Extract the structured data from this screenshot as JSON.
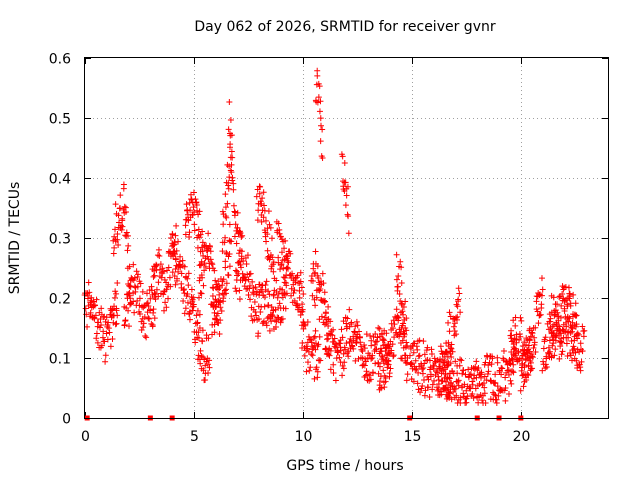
{
  "chart_data": {
    "type": "scatter",
    "title": "Day 062 of 2026, SRMTID for receiver gvnr",
    "xlabel": "GPS time / hours",
    "ylabel": "SRMTID / TECUs",
    "xlim": [
      0,
      24
    ],
    "ylim": [
      0,
      0.6
    ],
    "xticks": [
      0,
      5,
      10,
      15,
      20
    ],
    "xtick_labels": [
      "0",
      "5",
      "10",
      "15",
      "20"
    ],
    "yticks": [
      0,
      0.1,
      0.2,
      0.3,
      0.4,
      0.5,
      0.6
    ],
    "ytick_labels": [
      "0",
      "0.1",
      "0.2",
      "0.3",
      "0.4",
      "0.5",
      "0.6"
    ],
    "grid": true,
    "marker": "plus",
    "color": "#ff0000",
    "gap_markers_x": [
      0.1,
      3.0,
      4.0,
      14.9,
      18.0,
      19.0,
      20.0
    ],
    "series": [
      {
        "name": "SRMTID",
        "segments": [
          {
            "x": [
              0.0,
              1.5
            ],
            "p": [
              [
                0.0,
                0.17
              ],
              [
                0.3,
                0.2
              ],
              [
                0.6,
                0.15
              ],
              [
                1.0,
                0.14
              ],
              [
                1.3,
                0.18
              ],
              [
                1.5,
                0.2
              ]
            ]
          },
          {
            "x": [
              1.3,
              2.1
            ],
            "p": [
              [
                1.3,
                0.3
              ],
              [
                1.6,
                0.34
              ],
              [
                1.8,
                0.36
              ],
              [
                2.0,
                0.25
              ],
              [
                2.1,
                0.2
              ]
            ]
          },
          {
            "x": [
              1.8,
              3.2
            ],
            "p": [
              [
                1.8,
                0.17
              ],
              [
                2.3,
                0.22
              ],
              [
                2.7,
                0.17
              ],
              [
                3.0,
                0.18
              ],
              [
                3.2,
                0.2
              ]
            ]
          },
          {
            "x": [
              3.1,
              4.2
            ],
            "p": [
              [
                3.1,
                0.22
              ],
              [
                3.4,
                0.25
              ],
              [
                3.7,
                0.2
              ],
              [
                4.0,
                0.28
              ],
              [
                4.2,
                0.3
              ]
            ]
          },
          {
            "x": [
              4.0,
              5.0
            ],
            "p": [
              [
                4.0,
                0.28
              ],
              [
                4.4,
                0.24
              ],
              [
                4.7,
                0.2
              ],
              [
                5.0,
                0.19
              ]
            ]
          },
          {
            "x": [
              4.6,
              5.4
            ],
            "p": [
              [
                4.6,
                0.3
              ],
              [
                4.9,
                0.36
              ],
              [
                5.1,
                0.34
              ],
              [
                5.4,
                0.26
              ]
            ]
          },
          {
            "x": [
              5.0,
              5.7
            ],
            "p": [
              [
                5.0,
                0.15
              ],
              [
                5.3,
                0.11
              ],
              [
                5.5,
                0.09
              ],
              [
                5.7,
                0.12
              ]
            ]
          },
          {
            "x": [
              5.2,
              6.2
            ],
            "p": [
              [
                5.2,
                0.2
              ],
              [
                5.6,
                0.3
              ],
              [
                5.9,
                0.22
              ],
              [
                6.2,
                0.18
              ]
            ]
          },
          {
            "x": [
              5.8,
              6.7
            ],
            "p": [
              [
                5.8,
                0.16
              ],
              [
                6.2,
                0.2
              ],
              [
                6.5,
                0.25
              ],
              [
                6.7,
                0.3
              ]
            ]
          },
          {
            "x": [
              6.3,
              7.2
            ],
            "p": [
              [
                6.3,
                0.3
              ],
              [
                6.5,
                0.38
              ],
              [
                6.7,
                0.44
              ],
              [
                6.9,
                0.32
              ],
              [
                7.2,
                0.28
              ]
            ]
          },
          {
            "x": [
              6.6,
              6.75
            ],
            "p": [
              [
                6.6,
                0.5
              ],
              [
                6.75,
                0.45
              ]
            ]
          },
          {
            "x": [
              6.9,
              8.0
            ],
            "p": [
              [
                6.9,
                0.22
              ],
              [
                7.3,
                0.25
              ],
              [
                7.7,
                0.2
              ],
              [
                8.0,
                0.18
              ]
            ]
          },
          {
            "x": [
              7.9,
              8.7
            ],
            "p": [
              [
                7.9,
                0.36
              ],
              [
                8.1,
                0.35
              ],
              [
                8.4,
                0.3
              ],
              [
                8.7,
                0.24
              ]
            ]
          },
          {
            "x": [
              8.0,
              9.3
            ],
            "p": [
              [
                8.0,
                0.2
              ],
              [
                8.5,
                0.18
              ],
              [
                9.0,
                0.2
              ],
              [
                9.3,
                0.22
              ]
            ]
          },
          {
            "x": [
              8.8,
              10.0
            ],
            "p": [
              [
                8.8,
                0.3
              ],
              [
                9.2,
                0.26
              ],
              [
                9.6,
                0.22
              ],
              [
                10.0,
                0.2
              ]
            ]
          },
          {
            "x": [
              9.9,
              10.8
            ],
            "p": [
              [
                9.9,
                0.16
              ],
              [
                10.2,
                0.12
              ],
              [
                10.5,
                0.1
              ],
              [
                10.8,
                0.12
              ]
            ]
          },
          {
            "x": [
              10.4,
              11.2
            ],
            "p": [
              [
                10.4,
                0.2
              ],
              [
                10.7,
                0.25
              ],
              [
                11.0,
                0.18
              ],
              [
                11.2,
                0.14
              ]
            ]
          },
          {
            "x": [
              10.6,
              10.9
            ],
            "p": [
              [
                10.6,
                0.56
              ],
              [
                10.75,
                0.53
              ],
              [
                10.9,
                0.47
              ]
            ]
          },
          {
            "x": [
              11.0,
              12.0
            ],
            "p": [
              [
                11.0,
                0.15
              ],
              [
                11.5,
                0.1
              ],
              [
                12.0,
                0.13
              ]
            ]
          },
          {
            "x": [
              11.8,
              12.1
            ],
            "p": [
              [
                11.8,
                0.42
              ],
              [
                11.95,
                0.4
              ],
              [
                12.1,
                0.32
              ]
            ]
          },
          {
            "x": [
              12.0,
              14.0
            ],
            "p": [
              [
                12.0,
                0.15
              ],
              [
                12.5,
                0.12
              ],
              [
                13.0,
                0.1
              ],
              [
                13.5,
                0.12
              ],
              [
                14.0,
                0.1
              ]
            ]
          },
          {
            "x": [
              13.5,
              14.8
            ],
            "p": [
              [
                13.5,
                0.06
              ],
              [
                14.0,
                0.12
              ],
              [
                14.4,
                0.15
              ],
              [
                14.8,
                0.1
              ]
            ]
          },
          {
            "x": [
              14.3,
              14.8
            ],
            "p": [
              [
                14.3,
                0.25
              ],
              [
                14.5,
                0.22
              ],
              [
                14.7,
                0.15
              ],
              [
                14.8,
                0.12
              ]
            ]
          },
          {
            "x": [
              14.9,
              16.8
            ],
            "p": [
              [
                14.9,
                0.1
              ],
              [
                15.5,
                0.08
              ],
              [
                16.0,
                0.07
              ],
              [
                16.5,
                0.06
              ],
              [
                16.8,
                0.07
              ]
            ]
          },
          {
            "x": [
              16.2,
              18.0
            ],
            "p": [
              [
                16.2,
                0.08
              ],
              [
                17.0,
                0.06
              ],
              [
                17.5,
                0.05
              ],
              [
                18.0,
                0.06
              ]
            ]
          },
          {
            "x": [
              16.5,
              17.2
            ],
            "p": [
              [
                16.5,
                0.1
              ],
              [
                16.8,
                0.14
              ],
              [
                17.2,
                0.18
              ]
            ]
          },
          {
            "x": [
              18.0,
              19.8
            ],
            "p": [
              [
                18.0,
                0.05
              ],
              [
                18.5,
                0.07
              ],
              [
                19.0,
                0.06
              ],
              [
                19.5,
                0.08
              ],
              [
                19.8,
                0.1
              ]
            ]
          },
          {
            "x": [
              19.5,
              20.5
            ],
            "p": [
              [
                19.5,
                0.12
              ],
              [
                19.8,
                0.14
              ],
              [
                20.2,
                0.11
              ],
              [
                20.5,
                0.1
              ]
            ]
          },
          {
            "x": [
              20.0,
              21.0
            ],
            "p": [
              [
                20.0,
                0.08
              ],
              [
                20.5,
                0.12
              ],
              [
                20.8,
                0.18
              ],
              [
                21.0,
                0.2
              ]
            ]
          },
          {
            "x": [
              21.0,
              22.9
            ],
            "p": [
              [
                21.0,
                0.1
              ],
              [
                21.5,
                0.14
              ],
              [
                22.0,
                0.15
              ],
              [
                22.5,
                0.13
              ],
              [
                22.9,
                0.11
              ]
            ]
          },
          {
            "x": [
              21.3,
              22.6
            ],
            "p": [
              [
                21.3,
                0.16
              ],
              [
                21.8,
                0.17
              ],
              [
                22.2,
                0.18
              ],
              [
                22.6,
                0.15
              ]
            ]
          }
        ]
      }
    ]
  }
}
